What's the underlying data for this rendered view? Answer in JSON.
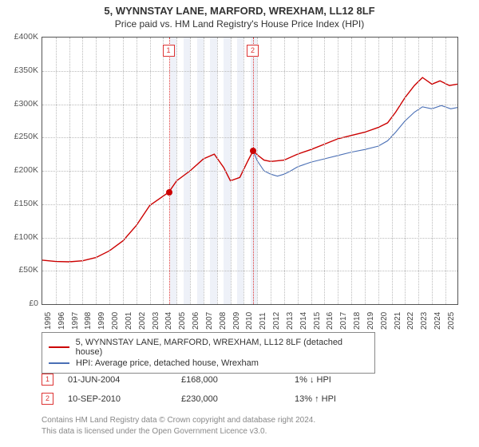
{
  "title_line1": "5, WYNNSTAY LANE, MARFORD, WREXHAM, LL12 8LF",
  "title_line2": "Price paid vs. HM Land Registry's House Price Index (HPI)",
  "title_fontsize": 13,
  "subtitle_fontsize": 12,
  "chart": {
    "type": "line",
    "x_start_year": 1995,
    "x_end_year": 2025.9,
    "ylim": [
      0,
      400000
    ],
    "y_ticks": [
      0,
      50000,
      100000,
      150000,
      200000,
      250000,
      300000,
      350000,
      400000
    ],
    "y_tick_labels": [
      "£0",
      "£50K",
      "£100K",
      "£150K",
      "£200K",
      "£250K",
      "£300K",
      "£350K",
      "£400K"
    ],
    "x_ticks_years": [
      1995,
      1996,
      1997,
      1998,
      1999,
      2000,
      2001,
      2002,
      2003,
      2004,
      2005,
      2006,
      2007,
      2008,
      2009,
      2010,
      2011,
      2012,
      2013,
      2014,
      2015,
      2016,
      2017,
      2018,
      2019,
      2020,
      2021,
      2022,
      2023,
      2024,
      2025
    ],
    "shaded_bands_years": [
      [
        2004.5,
        2005.0
      ],
      [
        2005.5,
        2006.0
      ],
      [
        2006.5,
        2007.0
      ],
      [
        2007.5,
        2008.0
      ],
      [
        2008.5,
        2009.0
      ],
      [
        2009.5,
        2010.0
      ],
      [
        2010.5,
        2011.0
      ]
    ],
    "background_color": "#ffffff",
    "grid_color": "#bbbbbb",
    "axis_color": "#555555",
    "label_fontsize": 10.5,
    "series": [
      {
        "name": "red",
        "color": "#cc0000",
        "line_width": 1.4,
        "legend": "5, WYNNSTAY LANE, MARFORD, WREXHAM, LL12 8LF (detached house)",
        "points": [
          [
            1995.0,
            66000
          ],
          [
            1996.0,
            64000
          ],
          [
            1997.0,
            63500
          ],
          [
            1998.0,
            65000
          ],
          [
            1999.0,
            70000
          ],
          [
            2000.0,
            80000
          ],
          [
            2001.0,
            95000
          ],
          [
            2002.0,
            118000
          ],
          [
            2003.0,
            148000
          ],
          [
            2004.42,
            168000
          ],
          [
            2005.0,
            185000
          ],
          [
            2006.0,
            200000
          ],
          [
            2007.0,
            218000
          ],
          [
            2007.8,
            225000
          ],
          [
            2008.5,
            205000
          ],
          [
            2009.0,
            185000
          ],
          [
            2009.7,
            190000
          ],
          [
            2010.3,
            215000
          ],
          [
            2010.69,
            230000
          ],
          [
            2011.0,
            224000
          ],
          [
            2011.5,
            216000
          ],
          [
            2012.0,
            214000
          ],
          [
            2013.0,
            216000
          ],
          [
            2014.0,
            225000
          ],
          [
            2015.0,
            232000
          ],
          [
            2016.0,
            240000
          ],
          [
            2017.0,
            248000
          ],
          [
            2018.0,
            253000
          ],
          [
            2019.0,
            258000
          ],
          [
            2020.0,
            265000
          ],
          [
            2020.7,
            272000
          ],
          [
            2021.3,
            288000
          ],
          [
            2022.0,
            310000
          ],
          [
            2022.7,
            328000
          ],
          [
            2023.3,
            340000
          ],
          [
            2024.0,
            330000
          ],
          [
            2024.6,
            335000
          ],
          [
            2025.3,
            328000
          ],
          [
            2025.9,
            330000
          ]
        ]
      },
      {
        "name": "blue",
        "color": "#4a6fb5",
        "line_width": 1.1,
        "legend": "HPI: Average price, detached house, Wrexham",
        "points": [
          [
            2010.69,
            230000
          ],
          [
            2011.0,
            215000
          ],
          [
            2011.5,
            200000
          ],
          [
            2012.0,
            195000
          ],
          [
            2012.5,
            192000
          ],
          [
            2013.0,
            195000
          ],
          [
            2013.5,
            200000
          ],
          [
            2014.0,
            206000
          ],
          [
            2015.0,
            213000
          ],
          [
            2016.0,
            218000
          ],
          [
            2017.0,
            223000
          ],
          [
            2018.0,
            228000
          ],
          [
            2019.0,
            232000
          ],
          [
            2020.0,
            237000
          ],
          [
            2020.7,
            245000
          ],
          [
            2021.3,
            258000
          ],
          [
            2022.0,
            275000
          ],
          [
            2022.7,
            288000
          ],
          [
            2023.3,
            296000
          ],
          [
            2024.0,
            293000
          ],
          [
            2024.7,
            298000
          ],
          [
            2025.4,
            293000
          ],
          [
            2025.9,
            295000
          ]
        ]
      }
    ],
    "event_markers": [
      {
        "n": "1",
        "year": 2004.42,
        "price": 168000
      },
      {
        "n": "2",
        "year": 2010.69,
        "price": 230000
      }
    ]
  },
  "sales_table": [
    {
      "n": "1",
      "date": "01-JUN-2004",
      "price": "£168,000",
      "delta": "1% ↓ HPI"
    },
    {
      "n": "2",
      "date": "10-SEP-2010",
      "price": "£230,000",
      "delta": "13% ↑ HPI"
    }
  ],
  "footer_line1": "Contains HM Land Registry data © Crown copyright and database right 2024.",
  "footer_line2": "This data is licensed under the Open Government Licence v3.0."
}
